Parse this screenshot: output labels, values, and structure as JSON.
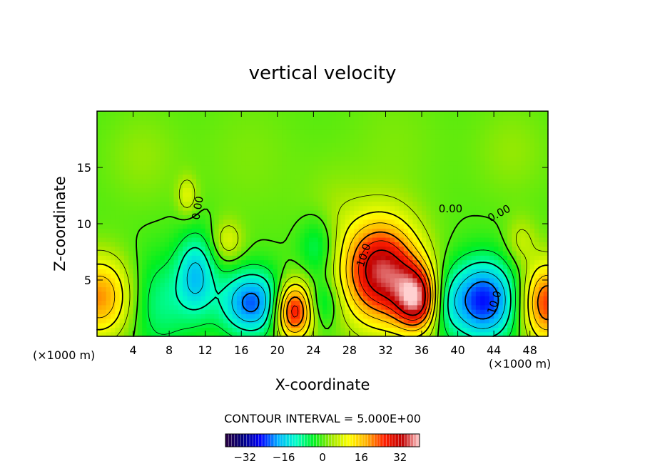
{
  "chart_data": {
    "type": "heatmap",
    "title": "vertical velocity",
    "xlabel": "X-coordinate",
    "ylabel": "Z-coordinate",
    "x_unit_left": "(×1000 m)",
    "x_unit_right": "(×1000 m)",
    "xlim": [
      0,
      50
    ],
    "ylim": [
      0,
      20
    ],
    "x_ticks": [
      4,
      8,
      12,
      16,
      20,
      24,
      28,
      32,
      36,
      40,
      44,
      48
    ],
    "y_ticks": [
      5,
      10,
      15
    ],
    "contour_interval_text": "CONTOUR INTERVAL = 5.000E+00",
    "contour_labels": [
      {
        "text": "0.00",
        "x": 11.2,
        "z": 11.4,
        "angle": -80
      },
      {
        "text": "10.0",
        "x": 29.6,
        "z": 7.2,
        "angle": -72
      },
      {
        "text": "0.00",
        "x": 39.2,
        "z": 11.3,
        "angle": 0
      },
      {
        "text": "0.00",
        "x": 44.6,
        "z": 10.9,
        "angle": -28
      },
      {
        "text": "10.0",
        "x": 44.1,
        "z": 3.0,
        "angle": -72
      }
    ],
    "colorbar": {
      "range": [
        -40,
        40
      ],
      "ticks": [
        -32,
        -16,
        0,
        16,
        32
      ],
      "colormap": [
        "#2a0040",
        "#000080",
        "#0000ff",
        "#00b4ff",
        "#00ffc8",
        "#00f020",
        "#a0e800",
        "#ffff00",
        "#ffb000",
        "#ff2000",
        "#c00000",
        "#ffd0d0"
      ]
    },
    "features": [
      {
        "x": 31.5,
        "z": 5.8,
        "w": 35,
        "sx": 3.0,
        "sz": 3.2
      },
      {
        "x": 35.5,
        "z": 3.3,
        "w": 30,
        "sx": 1.7,
        "sz": 2.0
      },
      {
        "x": 21.8,
        "z": 2.3,
        "w": 30,
        "sx": 1.5,
        "sz": 1.8
      },
      {
        "x": 49.8,
        "z": 3.0,
        "w": 25,
        "sx": 2.0,
        "sz": 2.5
      },
      {
        "x": 0.3,
        "z": 3.5,
        "w": 20,
        "sx": 2.5,
        "sz": 2.5
      },
      {
        "x": 42.8,
        "z": 3.2,
        "w": -25,
        "sx": 2.8,
        "sz": 2.5
      },
      {
        "x": 17.2,
        "z": 3.0,
        "w": -22,
        "sx": 2.5,
        "sz": 2.0
      },
      {
        "x": 11.0,
        "z": 5.5,
        "w": -15,
        "sx": 1.5,
        "sz": 2.5
      },
      {
        "x": 7.0,
        "z": 3.0,
        "w": -8,
        "sx": 2.5,
        "sz": 3.0
      },
      {
        "x": 24.5,
        "z": 8.0,
        "w": -8,
        "sx": 1.5,
        "sz": 2.0
      },
      {
        "x": 25.0,
        "z": 3.0,
        "w": -8,
        "sx": 1.3,
        "sz": 1.5
      },
      {
        "x": 38.5,
        "z": 3.0,
        "w": -6,
        "sx": 1.2,
        "sz": 2.0
      },
      {
        "x": 14.5,
        "z": 8.5,
        "w": 8,
        "sx": 1.2,
        "sz": 1.3
      },
      {
        "x": 10.0,
        "z": 12.5,
        "w": 8,
        "sx": 0.8,
        "sz": 1.2
      },
      {
        "x": 47.0,
        "z": 8.5,
        "w": 6,
        "sx": 1.2,
        "sz": 1.5
      },
      {
        "x": 26.0,
        "z": 11.0,
        "w": 3,
        "sx": 2.5,
        "sz": 3.0
      },
      {
        "x": 5.0,
        "z": 16.0,
        "w": 3,
        "sx": 3.0,
        "sz": 3.0
      },
      {
        "x": 46.0,
        "z": 16.5,
        "w": 3,
        "sx": 3.0,
        "sz": 3.0
      },
      {
        "x": 17.0,
        "z": 16.0,
        "w": 2,
        "sx": 4.0,
        "sz": 4.0
      },
      {
        "x": 33.0,
        "z": 17.0,
        "w": 2,
        "sx": 4.0,
        "sz": 4.0
      }
    ]
  }
}
